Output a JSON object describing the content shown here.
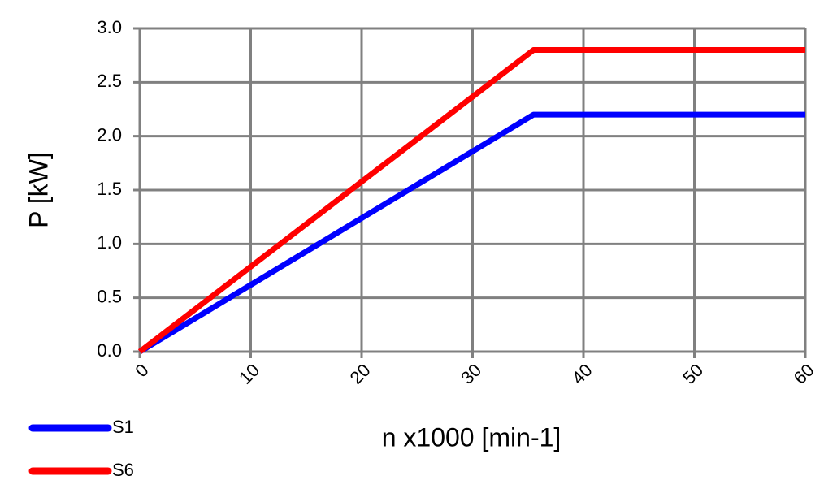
{
  "chart_data": {
    "type": "line",
    "x": [
      0,
      35.5,
      60
    ],
    "series": [
      {
        "name": "S1",
        "color": "#0000ff",
        "values": [
          0,
          2.2,
          2.2
        ]
      },
      {
        "name": "S6",
        "color": "#ff0000",
        "values": [
          0,
          2.8,
          2.8
        ]
      }
    ],
    "xlabel": "n x1000 [min-1]",
    "ylabel": "P [kW]",
    "xlim": [
      0,
      60
    ],
    "xticks": [
      0,
      10,
      20,
      30,
      40,
      50,
      60
    ],
    "ylim": [
      0,
      3
    ],
    "yticks": [
      {
        "value": 0,
        "label": "0.0"
      },
      0.5,
      {
        "value": 1,
        "label": "1.0"
      },
      1.5,
      {
        "value": 2,
        "label": "2.0"
      },
      2.5,
      {
        "value": 3,
        "label": "3.0"
      }
    ],
    "grid": true,
    "grid_color": "#808080",
    "legend": "bottom-left"
  }
}
